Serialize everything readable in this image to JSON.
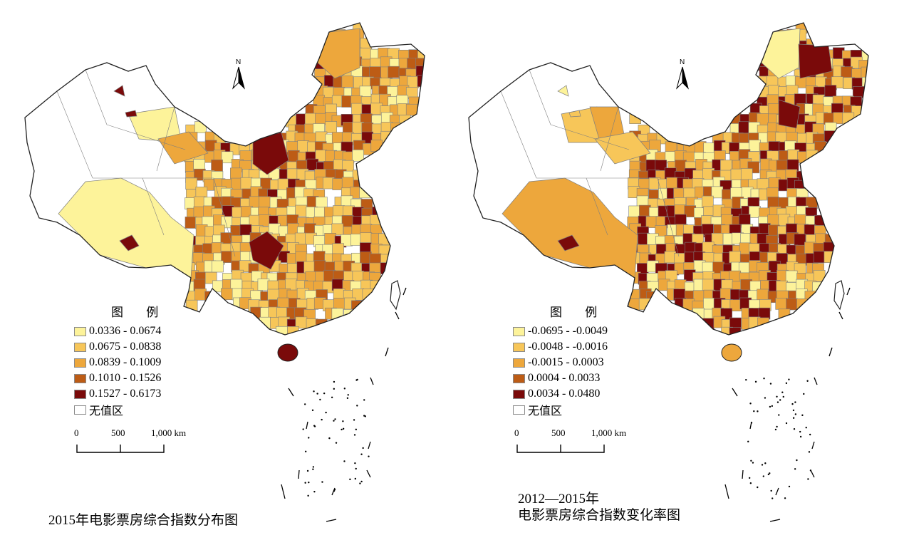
{
  "compass": {
    "north_label": "N",
    "icon": "north-arrow-icon"
  },
  "legend_title": "图 例",
  "no_data_label": "无值区",
  "scale_labels": [
    "0",
    "500",
    "1,000 km"
  ],
  "colors": {
    "no_data": "#ffffff",
    "outline": "#7f7f7f",
    "class1": "#fdf39a",
    "class2": "#f7c659",
    "class3": "#eda73c",
    "class4": "#bd5c15",
    "class5": "#7a0a0a"
  },
  "panels": [
    {
      "caption_lines": [
        "2015年电影票房综合指数分布图"
      ],
      "classes": [
        {
          "label": "0.0336 - 0.0674",
          "color": "#fdf39a"
        },
        {
          "label": "0.0675 - 0.0838",
          "color": "#f7c659"
        },
        {
          "label": "0.0839 - 0.1009",
          "color": "#eda73c"
        },
        {
          "label": "0.1010 - 0.1526",
          "color": "#bd5c15"
        },
        {
          "label": "0.1527 - 0.6173",
          "color": "#7a0a0a"
        }
      ]
    },
    {
      "caption_lines": [
        "2012—2015年",
        "电影票房综合指数变化率图"
      ],
      "classes": [
        {
          "label": "-0.0695 - -0.0049",
          "color": "#fdf39a"
        },
        {
          "label": "-0.0048 - -0.0016",
          "color": "#f7c659"
        },
        {
          "label": "-0.0015 - 0.0003",
          "color": "#eda73c"
        },
        {
          "label": "0.0004  - 0.0033",
          "color": "#bd5c15"
        },
        {
          "label": "0.0034  - 0.0480",
          "color": "#7a0a0a"
        }
      ]
    }
  ]
}
